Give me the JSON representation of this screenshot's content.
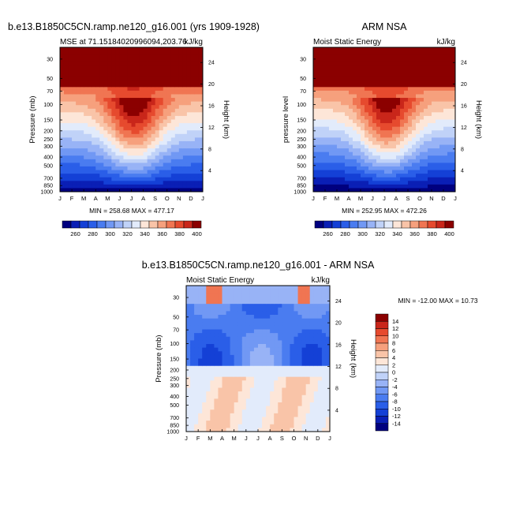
{
  "chart_data": {
    "type": "heatmap",
    "months": [
      "J",
      "F",
      "M",
      "A",
      "M",
      "J",
      "J",
      "A",
      "S",
      "O",
      "N",
      "D",
      "J"
    ],
    "pressure_ticks": [
      "30",
      "50",
      "70",
      "100",
      "150",
      "200",
      "250",
      "300",
      "400",
      "500",
      "700",
      "850",
      "1000"
    ],
    "pressure_values": [
      30,
      50,
      70,
      100,
      150,
      200,
      250,
      300,
      400,
      500,
      700,
      850,
      1000
    ],
    "height_ticks": [
      "4",
      "8",
      "12",
      "16",
      "20",
      "24"
    ],
    "height_values": [
      4,
      8,
      12,
      16,
      20,
      24
    ],
    "ylim_pressure": [
      1000,
      22
    ],
    "panels": [
      {
        "id": "model",
        "title": "b.e13.B1850C5CN.ramp.ne120_g16.001 (yrs 1909-1928)",
        "left_label": "MSE at 71.15184020996094,203.76",
        "right_label": "kJ/kg",
        "ylabel": "Pressure (mb)",
        "ylabel_right": "Height (km)",
        "stats": "MIN = 258.68 MAX = 477.17",
        "levels": [
          260,
          270,
          280,
          290,
          300,
          310,
          320,
          330,
          340,
          350,
          360,
          370,
          380,
          390,
          400
        ],
        "colorbar_labels": [
          "260",
          "280",
          "300",
          "320",
          "340",
          "360",
          "380",
          "400"
        ],
        "min": 258.68,
        "max": 477.17
      },
      {
        "id": "obs",
        "title": "ARM NSA",
        "left_label": "Moist Static Energy",
        "right_label": "kJ/kg",
        "ylabel": "pressure level",
        "ylabel_right": "Height (km)",
        "stats": "MIN = 252.95 MAX = 472.26",
        "levels": [
          260,
          270,
          280,
          290,
          300,
          310,
          320,
          330,
          340,
          350,
          360,
          370,
          380,
          390,
          400
        ],
        "colorbar_labels": [
          "260",
          "280",
          "300",
          "320",
          "340",
          "360",
          "380",
          "400"
        ],
        "min": 252.95,
        "max": 472.26
      },
      {
        "id": "diff",
        "title": "b.e13.B1850C5CN.ramp.ne120_g16.001 - ARM NSA",
        "left_label": "Moist Static Energy",
        "right_label": "kJ/kg",
        "ylabel": "Pressure (mb)",
        "ylabel_right": "Height (km)",
        "stats": "MIN = -12.00 MAX =  10.73",
        "levels": [
          -14,
          -12,
          -10,
          -8,
          -6,
          -4,
          -2,
          0,
          2,
          4,
          6,
          8,
          10,
          12,
          14
        ],
        "colorbar_labels": [
          "14",
          "12",
          "10",
          "8",
          "6",
          "4",
          "2",
          "0",
          "-2",
          "-4",
          "-6",
          "-8",
          "-10",
          "-12",
          "-14"
        ],
        "min": -12.0,
        "max": 10.73
      }
    ]
  },
  "colors": {
    "palette": [
      "#00007f",
      "#0a1fb5",
      "#1440d6",
      "#2a5ee8",
      "#4a7cf0",
      "#7198f4",
      "#98b3f6",
      "#c0d2f8",
      "#e2ebfb",
      "#fde6d8",
      "#f9c4a8",
      "#f6a07d",
      "#f07552",
      "#e64a2e",
      "#c9261a",
      "#8b0000"
    ]
  }
}
